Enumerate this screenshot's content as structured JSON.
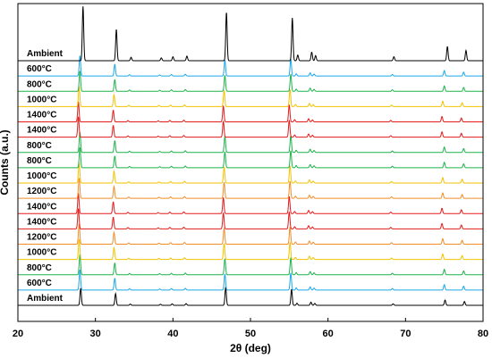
{
  "chart_data": {
    "type": "line",
    "xlabel": "2θ (deg)",
    "ylabel": "Counts (a.u.)",
    "xlim": [
      20,
      80
    ],
    "x_ticks": [
      20,
      30,
      40,
      50,
      60,
      70,
      80
    ],
    "y_ticks_shown": false,
    "grid": false,
    "legend": "labels on each trace at left",
    "traces_order": "bottom to top",
    "series": [
      {
        "name": "Ambient",
        "color": "#000000",
        "peaks": [
          [
            28.1,
            0.8
          ],
          [
            32.6,
            0.55
          ],
          [
            34.5,
            0.06
          ],
          [
            38.4,
            0.05
          ],
          [
            39.9,
            0.07
          ],
          [
            41.7,
            0.08
          ],
          [
            46.8,
            0.85
          ],
          [
            55.3,
            0.75
          ],
          [
            56.0,
            0.1
          ],
          [
            57.8,
            0.15
          ],
          [
            58.3,
            0.09
          ],
          [
            68.4,
            0.07
          ],
          [
            75.1,
            0.25
          ],
          [
            77.6,
            0.18
          ]
        ]
      },
      {
        "name": "600°C",
        "color": "#1aa7e8",
        "peaks": [
          [
            28.0,
            0.95
          ],
          [
            32.5,
            0.55
          ],
          [
            34.4,
            0.06
          ],
          [
            38.3,
            0.05
          ],
          [
            39.8,
            0.07
          ],
          [
            41.6,
            0.08
          ],
          [
            46.7,
            0.75
          ],
          [
            55.2,
            0.8
          ],
          [
            55.9,
            0.1
          ],
          [
            57.7,
            0.15
          ],
          [
            58.2,
            0.09
          ],
          [
            68.3,
            0.07
          ],
          [
            75.0,
            0.25
          ],
          [
            77.5,
            0.18
          ]
        ]
      },
      {
        "name": "800°C",
        "color": "#1db34a",
        "peaks": [
          [
            28.0,
            0.95
          ],
          [
            32.5,
            0.55
          ],
          [
            34.4,
            0.06
          ],
          [
            38.3,
            0.05
          ],
          [
            39.8,
            0.07
          ],
          [
            41.6,
            0.08
          ],
          [
            46.7,
            0.75
          ],
          [
            55.2,
            0.8
          ],
          [
            55.9,
            0.1
          ],
          [
            57.7,
            0.15
          ],
          [
            58.2,
            0.09
          ],
          [
            68.3,
            0.07
          ],
          [
            75.0,
            0.25
          ],
          [
            77.5,
            0.18
          ]
        ]
      },
      {
        "name": "1000°C",
        "color": "#f2c200",
        "peaks": [
          [
            27.9,
            0.95
          ],
          [
            32.4,
            0.55
          ],
          [
            34.3,
            0.06
          ],
          [
            38.2,
            0.05
          ],
          [
            39.7,
            0.07
          ],
          [
            41.5,
            0.08
          ],
          [
            46.6,
            0.75
          ],
          [
            55.1,
            0.8
          ],
          [
            55.8,
            0.1
          ],
          [
            57.6,
            0.15
          ],
          [
            58.1,
            0.09
          ],
          [
            68.2,
            0.07
          ],
          [
            74.8,
            0.25
          ],
          [
            77.3,
            0.18
          ]
        ]
      },
      {
        "name": "1200°C",
        "color": "#f28c28",
        "peaks": [
          [
            27.9,
            0.95
          ],
          [
            32.4,
            0.55
          ],
          [
            34.3,
            0.06
          ],
          [
            38.2,
            0.05
          ],
          [
            39.7,
            0.07
          ],
          [
            41.5,
            0.08
          ],
          [
            46.6,
            0.75
          ],
          [
            55.1,
            0.8
          ],
          [
            55.8,
            0.1
          ],
          [
            57.6,
            0.15
          ],
          [
            58.1,
            0.09
          ],
          [
            68.2,
            0.07
          ],
          [
            74.8,
            0.25
          ],
          [
            77.3,
            0.18
          ]
        ]
      },
      {
        "name": "1400°C",
        "color": "#e31b1b",
        "peaks": [
          [
            27.8,
            0.95
          ],
          [
            32.3,
            0.55
          ],
          [
            34.2,
            0.06
          ],
          [
            38.1,
            0.05
          ],
          [
            39.6,
            0.07
          ],
          [
            41.4,
            0.08
          ],
          [
            46.5,
            0.75
          ],
          [
            55.0,
            0.8
          ],
          [
            55.7,
            0.1
          ],
          [
            57.5,
            0.15
          ],
          [
            58.0,
            0.09
          ],
          [
            68.1,
            0.07
          ],
          [
            74.7,
            0.25
          ],
          [
            77.2,
            0.18
          ]
        ]
      },
      {
        "name": "1400°C",
        "color": "#e31b1b",
        "peaks": [
          [
            27.8,
            0.95
          ],
          [
            32.3,
            0.55
          ],
          [
            34.2,
            0.06
          ],
          [
            38.1,
            0.05
          ],
          [
            39.6,
            0.07
          ],
          [
            41.4,
            0.08
          ],
          [
            46.5,
            0.75
          ],
          [
            55.0,
            0.8
          ],
          [
            55.7,
            0.1
          ],
          [
            57.5,
            0.15
          ],
          [
            58.0,
            0.09
          ],
          [
            68.1,
            0.07
          ],
          [
            74.7,
            0.25
          ],
          [
            77.2,
            0.18
          ]
        ]
      },
      {
        "name": "1200°C",
        "color": "#f28c28",
        "peaks": [
          [
            27.9,
            0.95
          ],
          [
            32.4,
            0.55
          ],
          [
            34.3,
            0.06
          ],
          [
            38.2,
            0.05
          ],
          [
            39.7,
            0.07
          ],
          [
            41.5,
            0.08
          ],
          [
            46.6,
            0.75
          ],
          [
            55.1,
            0.8
          ],
          [
            55.8,
            0.1
          ],
          [
            57.6,
            0.15
          ],
          [
            58.1,
            0.09
          ],
          [
            68.2,
            0.07
          ],
          [
            74.8,
            0.25
          ],
          [
            77.3,
            0.18
          ]
        ]
      },
      {
        "name": "1000°C",
        "color": "#f2c200",
        "peaks": [
          [
            27.9,
            0.95
          ],
          [
            32.4,
            0.55
          ],
          [
            34.3,
            0.06
          ],
          [
            38.2,
            0.05
          ],
          [
            39.7,
            0.07
          ],
          [
            41.5,
            0.08
          ],
          [
            46.6,
            0.75
          ],
          [
            55.1,
            0.8
          ],
          [
            55.8,
            0.1
          ],
          [
            57.6,
            0.15
          ],
          [
            58.1,
            0.09
          ],
          [
            68.2,
            0.07
          ],
          [
            74.8,
            0.25
          ],
          [
            77.3,
            0.18
          ]
        ]
      },
      {
        "name": "800°C",
        "color": "#1db34a",
        "peaks": [
          [
            28.0,
            0.95
          ],
          [
            32.5,
            0.55
          ],
          [
            34.4,
            0.06
          ],
          [
            38.3,
            0.05
          ],
          [
            39.8,
            0.07
          ],
          [
            41.6,
            0.08
          ],
          [
            46.7,
            0.75
          ],
          [
            55.2,
            0.8
          ],
          [
            55.9,
            0.1
          ],
          [
            57.7,
            0.15
          ],
          [
            58.2,
            0.09
          ],
          [
            68.3,
            0.07
          ],
          [
            75.0,
            0.25
          ],
          [
            77.5,
            0.18
          ]
        ]
      },
      {
        "name": "800°C",
        "color": "#1db34a",
        "peaks": [
          [
            28.0,
            0.95
          ],
          [
            32.5,
            0.55
          ],
          [
            34.4,
            0.06
          ],
          [
            38.3,
            0.05
          ],
          [
            39.8,
            0.07
          ],
          [
            41.6,
            0.08
          ],
          [
            46.7,
            0.75
          ],
          [
            55.2,
            0.8
          ],
          [
            55.9,
            0.1
          ],
          [
            57.7,
            0.15
          ],
          [
            58.2,
            0.09
          ],
          [
            68.3,
            0.07
          ],
          [
            75.0,
            0.25
          ],
          [
            77.5,
            0.18
          ]
        ]
      },
      {
        "name": "1400°C",
        "color": "#e31b1b",
        "peaks": [
          [
            27.8,
            0.95
          ],
          [
            32.3,
            0.55
          ],
          [
            34.2,
            0.06
          ],
          [
            38.1,
            0.05
          ],
          [
            39.6,
            0.07
          ],
          [
            41.4,
            0.08
          ],
          [
            46.5,
            0.75
          ],
          [
            55.0,
            0.8
          ],
          [
            55.7,
            0.1
          ],
          [
            57.5,
            0.15
          ],
          [
            58.0,
            0.09
          ],
          [
            68.1,
            0.07
          ],
          [
            74.7,
            0.25
          ],
          [
            77.2,
            0.18
          ]
        ]
      },
      {
        "name": "1400°C",
        "color": "#e31b1b",
        "peaks": [
          [
            27.8,
            0.95
          ],
          [
            32.3,
            0.55
          ],
          [
            34.2,
            0.06
          ],
          [
            38.1,
            0.05
          ],
          [
            39.6,
            0.07
          ],
          [
            41.4,
            0.08
          ],
          [
            46.5,
            0.75
          ],
          [
            55.0,
            0.8
          ],
          [
            55.7,
            0.1
          ],
          [
            57.5,
            0.15
          ],
          [
            58.0,
            0.09
          ],
          [
            68.1,
            0.07
          ],
          [
            74.7,
            0.25
          ],
          [
            77.2,
            0.18
          ]
        ]
      },
      {
        "name": "1000°C",
        "color": "#f2c200",
        "peaks": [
          [
            27.9,
            0.95
          ],
          [
            32.4,
            0.55
          ],
          [
            34.3,
            0.06
          ],
          [
            38.2,
            0.05
          ],
          [
            39.7,
            0.07
          ],
          [
            41.5,
            0.08
          ],
          [
            46.6,
            0.75
          ],
          [
            55.1,
            0.8
          ],
          [
            55.8,
            0.1
          ],
          [
            57.6,
            0.15
          ],
          [
            58.1,
            0.09
          ],
          [
            68.2,
            0.07
          ],
          [
            74.8,
            0.25
          ],
          [
            77.3,
            0.18
          ]
        ]
      },
      {
        "name": "800°C",
        "color": "#1db34a",
        "peaks": [
          [
            28.0,
            0.95
          ],
          [
            32.5,
            0.55
          ],
          [
            34.4,
            0.06
          ],
          [
            38.3,
            0.05
          ],
          [
            39.8,
            0.07
          ],
          [
            41.6,
            0.08
          ],
          [
            46.7,
            0.75
          ],
          [
            55.2,
            0.8
          ],
          [
            55.9,
            0.1
          ],
          [
            57.7,
            0.15
          ],
          [
            58.2,
            0.09
          ],
          [
            68.3,
            0.07
          ],
          [
            75.0,
            0.25
          ],
          [
            77.5,
            0.18
          ]
        ]
      },
      {
        "name": "600°C",
        "color": "#1aa7e8",
        "peaks": [
          [
            28.0,
            0.95
          ],
          [
            32.5,
            0.55
          ],
          [
            34.4,
            0.06
          ],
          [
            38.3,
            0.05
          ],
          [
            39.8,
            0.07
          ],
          [
            41.6,
            0.08
          ],
          [
            46.7,
            0.75
          ],
          [
            55.2,
            0.8
          ],
          [
            55.9,
            0.1
          ],
          [
            57.7,
            0.15
          ],
          [
            58.2,
            0.09
          ],
          [
            68.3,
            0.07
          ],
          [
            75.0,
            0.25
          ],
          [
            77.5,
            0.18
          ]
        ]
      },
      {
        "name": "Ambient",
        "color": "#000000",
        "peaks": [
          [
            28.4,
            0.95
          ],
          [
            32.7,
            0.55
          ],
          [
            34.6,
            0.06
          ],
          [
            38.5,
            0.05
          ],
          [
            40.0,
            0.07
          ],
          [
            41.8,
            0.08
          ],
          [
            46.9,
            0.85
          ],
          [
            55.4,
            0.75
          ],
          [
            56.1,
            0.1
          ],
          [
            57.9,
            0.15
          ],
          [
            58.4,
            0.09
          ],
          [
            68.5,
            0.07
          ],
          [
            75.4,
            0.25
          ],
          [
            77.8,
            0.18
          ]
        ]
      }
    ]
  }
}
